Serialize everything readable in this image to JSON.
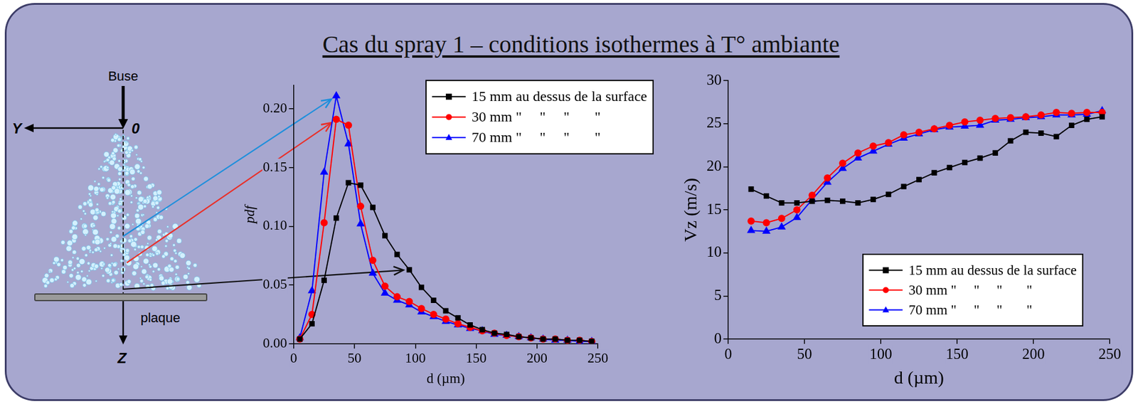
{
  "title": "Cas du spray 1 – conditions isothermes à T° ambiante",
  "diagram": {
    "nozzle": "Buse",
    "y_axis": "Y",
    "origin": "0",
    "z_axis": "Z",
    "plate": "plaque"
  },
  "chart_data": [
    {
      "type": "line",
      "x_label": "d (µm)",
      "y_label": "pdf",
      "xlim": [
        0,
        250
      ],
      "xticks": [
        0,
        50,
        100,
        150,
        200,
        250
      ],
      "ylim": [
        0,
        0.22
      ],
      "yticks": [
        {
          "value": 0,
          "label": "0.00"
        },
        {
          "value": 0.05,
          "label": "0.05"
        },
        {
          "value": 0.1,
          "label": "0.10"
        },
        {
          "value": 0.15,
          "label": "0.15"
        },
        {
          "value": 0.2,
          "label": "0.20"
        }
      ],
      "grid": false,
      "legend": "top-right",
      "x": [
        5,
        15,
        25,
        35,
        45,
        55,
        65,
        75,
        85,
        95,
        105,
        115,
        125,
        135,
        145,
        155,
        165,
        175,
        185,
        195,
        205,
        215,
        225,
        235,
        245
      ],
      "series": [
        {
          "name": "15 mm au dessus de la surface",
          "color": "#000000",
          "marker": "square",
          "line_style": "solid",
          "values": [
            0.004,
            0.017,
            0.054,
            0.107,
            0.137,
            0.135,
            0.116,
            0.092,
            0.076,
            0.063,
            0.048,
            0.037,
            0.028,
            0.022,
            0.016,
            0.012,
            0.009,
            0.008,
            0.006,
            0.005,
            0.004,
            0.004,
            0.003,
            0.003,
            0.002
          ]
        },
        {
          "name": "30 mm \"     \"     \"       \"",
          "color": "#ff0000",
          "marker": "circle",
          "line_style": "solid",
          "values": [
            0.004,
            0.025,
            0.103,
            0.191,
            0.186,
            0.117,
            0.071,
            0.049,
            0.04,
            0.036,
            0.03,
            0.025,
            0.021,
            0.017,
            0.014,
            0.011,
            0.009,
            0.007,
            0.006,
            0.005,
            0.004,
            0.004,
            0.003,
            0.003,
            0.002
          ]
        },
        {
          "name": "70 mm \"     \"     \"       \"",
          "color": "#0000ff",
          "marker": "triangle",
          "line_style": "solid",
          "values": [
            0.005,
            0.045,
            0.146,
            0.211,
            0.17,
            0.102,
            0.06,
            0.043,
            0.037,
            0.033,
            0.027,
            0.023,
            0.019,
            0.016,
            0.013,
            0.011,
            0.008,
            0.007,
            0.006,
            0.005,
            0.004,
            0.003,
            0.003,
            0.002,
            0.002
          ]
        }
      ]
    },
    {
      "type": "line",
      "x_label": "d (µm)",
      "y_label": "Vz (m/s)",
      "xlim": [
        0,
        250
      ],
      "xticks": [
        0,
        50,
        100,
        150,
        200,
        250
      ],
      "ylim": [
        0,
        30
      ],
      "yticks": [
        0,
        5,
        10,
        15,
        20,
        25,
        30
      ],
      "grid": false,
      "legend": "bottom-right",
      "x": [
        15,
        25,
        35,
        45,
        55,
        65,
        75,
        85,
        95,
        105,
        115,
        125,
        135,
        145,
        155,
        165,
        175,
        185,
        195,
        205,
        215,
        225,
        235,
        245
      ],
      "series": [
        {
          "name": "15 mm au dessus de la surface",
          "color": "#000000",
          "marker": "square",
          "line_style": "solid",
          "values": [
            17.4,
            16.6,
            15.8,
            15.8,
            16.0,
            16.1,
            16.0,
            15.8,
            16.2,
            16.8,
            17.7,
            18.5,
            19.3,
            19.9,
            20.5,
            21.0,
            21.6,
            23.0,
            24.0,
            23.9,
            23.5,
            24.8,
            25.5,
            25.8
          ]
        },
        {
          "name": "30 mm \"     \"     \"       \"",
          "color": "#ff0000",
          "marker": "circle",
          "line_style": "solid",
          "values": [
            13.7,
            13.5,
            14.0,
            15.0,
            16.7,
            18.7,
            20.4,
            21.6,
            22.4,
            22.8,
            23.7,
            24.0,
            24.4,
            24.8,
            25.2,
            25.4,
            25.6,
            25.7,
            25.8,
            26.0,
            26.3,
            26.2,
            26.3,
            26.3
          ]
        },
        {
          "name": "70 mm \"     \"     \"       \"",
          "color": "#0000ff",
          "marker": "triangle",
          "line_style": "solid",
          "values": [
            12.6,
            12.5,
            13.0,
            14.1,
            16.2,
            18.2,
            19.8,
            21.0,
            21.8,
            22.6,
            23.3,
            23.8,
            24.3,
            24.6,
            24.7,
            24.8,
            25.4,
            25.5,
            25.7,
            25.8,
            26.0,
            26.0,
            26.1,
            26.5
          ]
        }
      ]
    }
  ]
}
